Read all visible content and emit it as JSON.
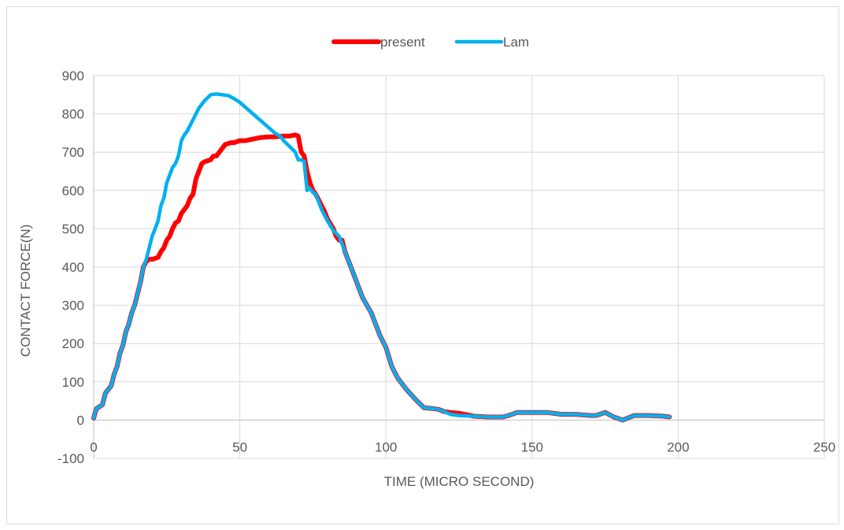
{
  "chart_data": {
    "type": "line",
    "xlabel": "TIME (MICRO SECOND)",
    "ylabel": "CONTACT FORCE(N)",
    "xlim": [
      0,
      250
    ],
    "ylim": [
      -100,
      900
    ],
    "xticks": [
      0,
      50,
      100,
      150,
      200,
      250
    ],
    "yticks": [
      -100,
      0,
      100,
      200,
      300,
      400,
      500,
      600,
      700,
      800,
      900
    ],
    "grid": true,
    "legend_position": "top-center",
    "series": [
      {
        "name": "present",
        "color": "#ff0000",
        "x": [
          0,
          0.5,
          1,
          3,
          4,
          5,
          6,
          7,
          8,
          9,
          10,
          11,
          12,
          13,
          14,
          15,
          16,
          17,
          18,
          19,
          20,
          22,
          23,
          24,
          25,
          26,
          27,
          28,
          29,
          30,
          31,
          32,
          33,
          34,
          35,
          36,
          37,
          38,
          40,
          41,
          42,
          43,
          44,
          45,
          47,
          48,
          50,
          52,
          55,
          57,
          60,
          62,
          65,
          67,
          69,
          70,
          71,
          72,
          73,
          74,
          75,
          76,
          78,
          79,
          80,
          82,
          83,
          84,
          85,
          86,
          87,
          88,
          90,
          92,
          95,
          97,
          98,
          100,
          102,
          104,
          107,
          110,
          113,
          116,
          118,
          120,
          122,
          125,
          130,
          135,
          140,
          142,
          145,
          150,
          155,
          160,
          165,
          170,
          172,
          175,
          178,
          181,
          185,
          190,
          195,
          197
        ],
        "y": [
          5,
          20,
          30,
          40,
          70,
          80,
          90,
          120,
          140,
          175,
          195,
          230,
          250,
          280,
          300,
          330,
          360,
          400,
          415,
          420,
          420,
          425,
          440,
          450,
          470,
          480,
          500,
          515,
          520,
          540,
          550,
          560,
          580,
          590,
          630,
          650,
          670,
          675,
          680,
          690,
          690,
          700,
          710,
          720,
          725,
          725,
          730,
          730,
          735,
          738,
          740,
          740,
          742,
          742,
          745,
          742,
          700,
          690,
          650,
          620,
          600,
          590,
          560,
          545,
          525,
          500,
          480,
          470,
          470,
          440,
          420,
          400,
          360,
          320,
          280,
          240,
          220,
          190,
          140,
          110,
          80,
          55,
          32,
          30,
          28,
          22,
          20,
          18,
          10,
          8,
          8,
          12,
          20,
          20,
          20,
          15,
          15,
          12,
          12,
          20,
          8,
          0,
          12,
          12,
          10,
          8
        ]
      },
      {
        "name": "Lam",
        "color": "#00b0f0",
        "x": [
          0,
          0.5,
          1,
          3,
          4,
          5,
          6,
          7,
          8,
          9,
          10,
          11,
          12,
          13,
          14,
          15,
          16,
          17,
          18,
          19,
          20,
          21,
          22,
          23,
          24,
          25,
          26,
          27,
          28,
          29,
          30,
          31,
          32,
          33,
          35,
          36,
          38,
          40,
          42,
          44,
          46,
          48,
          50,
          53,
          56,
          59,
          62,
          63,
          64,
          65,
          67,
          69,
          70,
          71,
          72,
          73,
          74,
          75,
          76,
          77,
          78,
          80,
          82,
          84,
          85,
          86,
          87,
          88,
          90,
          92,
          95,
          97,
          98,
          100,
          102,
          104,
          107,
          110,
          113,
          116,
          118,
          120,
          122,
          125,
          130,
          135,
          140,
          142,
          145,
          150,
          155,
          160,
          165,
          170,
          172,
          175,
          178,
          181,
          185,
          190,
          195,
          197
        ],
        "y": [
          5,
          20,
          30,
          40,
          70,
          80,
          90,
          120,
          140,
          175,
          195,
          230,
          250,
          280,
          300,
          330,
          360,
          400,
          420,
          450,
          480,
          500,
          520,
          560,
          580,
          620,
          640,
          660,
          670,
          690,
          730,
          745,
          755,
          770,
          800,
          815,
          835,
          850,
          852,
          850,
          848,
          840,
          830,
          810,
          790,
          770,
          750,
          745,
          740,
          730,
          715,
          700,
          680,
          680,
          675,
          600,
          605,
          595,
          590,
          570,
          550,
          520,
          495,
          480,
          460,
          440,
          420,
          400,
          360,
          320,
          280,
          240,
          220,
          190,
          140,
          110,
          80,
          55,
          32,
          30,
          28,
          22,
          15,
          12,
          10,
          8,
          8,
          12,
          20,
          20,
          20,
          15,
          15,
          12,
          12,
          20,
          8,
          0,
          12,
          12,
          10,
          8
        ]
      }
    ]
  }
}
